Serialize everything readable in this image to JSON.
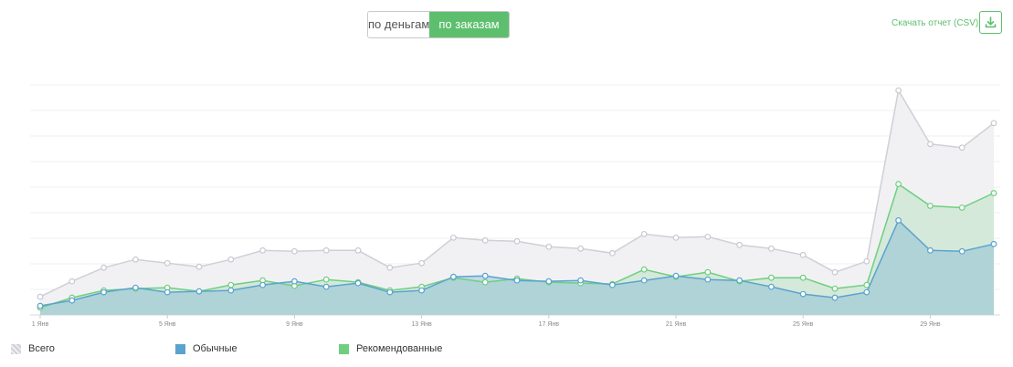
{
  "toggle": {
    "money_label": "по деньгам",
    "orders_label": "по заказам",
    "active": "orders"
  },
  "download": {
    "link_label": "Скачать отчет (CSV)",
    "icon": "download-icon"
  },
  "colors": {
    "accent": "#5dbf6e",
    "all": "#c4c4cc",
    "regular": "#5aa3cf",
    "recommended": "#6fcf7e"
  },
  "chart_data": {
    "type": "area",
    "x": [
      "1 Янв",
      "2 Янв",
      "3 Янв",
      "4 Янв",
      "5 Янв",
      "6 Янв",
      "7 Янв",
      "8 Янв",
      "9 Янв",
      "10 Янв",
      "11 Янв",
      "12 Янв",
      "13 Янв",
      "14 Янв",
      "15 Янв",
      "16 Янв",
      "17 Янв",
      "18 Янв",
      "19 Янв",
      "20 Янв",
      "21 Янв",
      "22 Янв",
      "23 Янв",
      "24 Янв",
      "25 Янв",
      "26 Янв",
      "27 Янв",
      "28 Янв",
      "29 Янв",
      "30 Янв",
      "31 Янв"
    ],
    "tick_labels": [
      "1 Янв",
      "5 Янв",
      "9 Янв",
      "13 Янв",
      "17 Янв",
      "21 Янв",
      "25 Янв",
      "29 Янв"
    ],
    "series": [
      {
        "name": "Всего",
        "key": "all",
        "values": [
          20,
          37,
          52,
          61,
          57,
          53,
          61,
          71,
          70,
          71,
          71,
          52,
          57,
          85,
          82,
          81,
          75,
          73,
          68,
          89,
          85,
          86,
          77,
          73,
          66,
          47,
          59,
          247,
          188,
          184,
          211
        ]
      },
      {
        "name": "Обычные",
        "key": "regular",
        "values": [
          10,
          16,
          25,
          30,
          25,
          26,
          27,
          33,
          37,
          31,
          35,
          25,
          27,
          42,
          43,
          38,
          37,
          38,
          33,
          38,
          43,
          39,
          38,
          31,
          23,
          19,
          25,
          104,
          71,
          70,
          78
        ]
      },
      {
        "name": "Рекомендованные",
        "key": "recommended",
        "values": [
          8,
          19,
          27,
          29,
          30,
          26,
          33,
          38,
          32,
          39,
          36,
          27,
          31,
          41,
          36,
          40,
          36,
          35,
          34,
          50,
          42,
          47,
          37,
          41,
          41,
          29,
          33,
          144,
          120,
          118,
          134
        ]
      }
    ],
    "ylim": [
      0,
      250
    ],
    "grid": true,
    "legend_position": "bottom-left"
  }
}
